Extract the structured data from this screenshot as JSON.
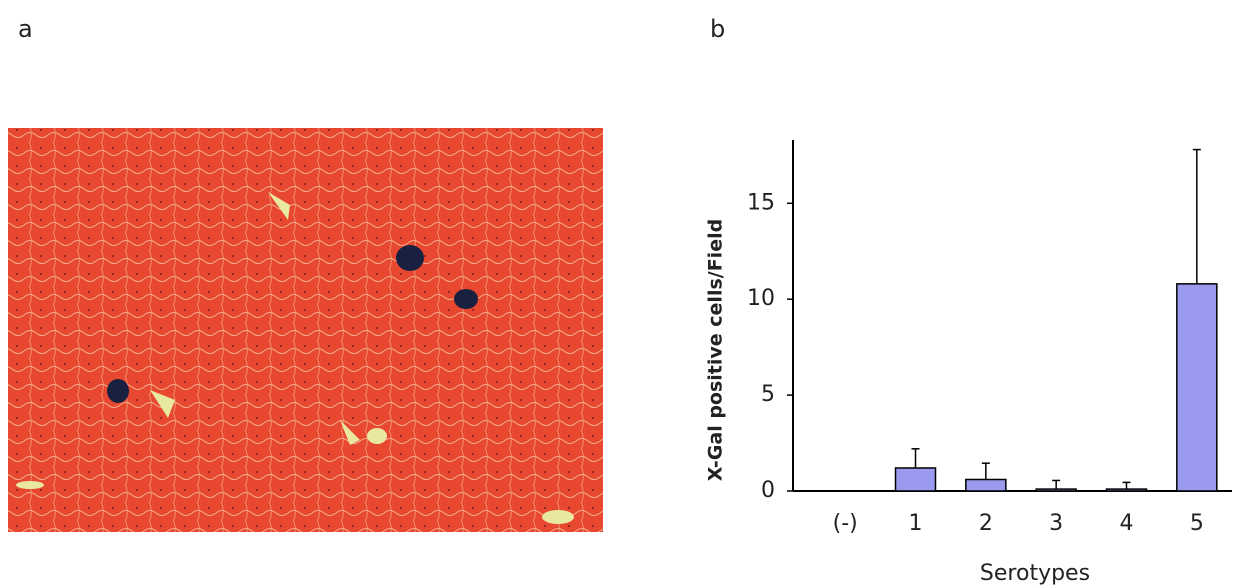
{
  "panel_labels": [
    "a",
    "b"
  ],
  "chart_data": {
    "type": "bar",
    "xlabel": "Serotypes",
    "ylabel": "X-Gal positive cells/Field",
    "categories": [
      "(-)",
      "1",
      "2",
      "3",
      "4",
      "5"
    ],
    "values": [
      0,
      1.2,
      0.6,
      0.1,
      0.1,
      10.8
    ],
    "errors": [
      0,
      1.0,
      0.85,
      0.45,
      0.35,
      7.0
    ],
    "color": "#9999ee",
    "ylim": [
      0,
      18.3
    ],
    "yticks": [
      0,
      5,
      10,
      15
    ]
  }
}
